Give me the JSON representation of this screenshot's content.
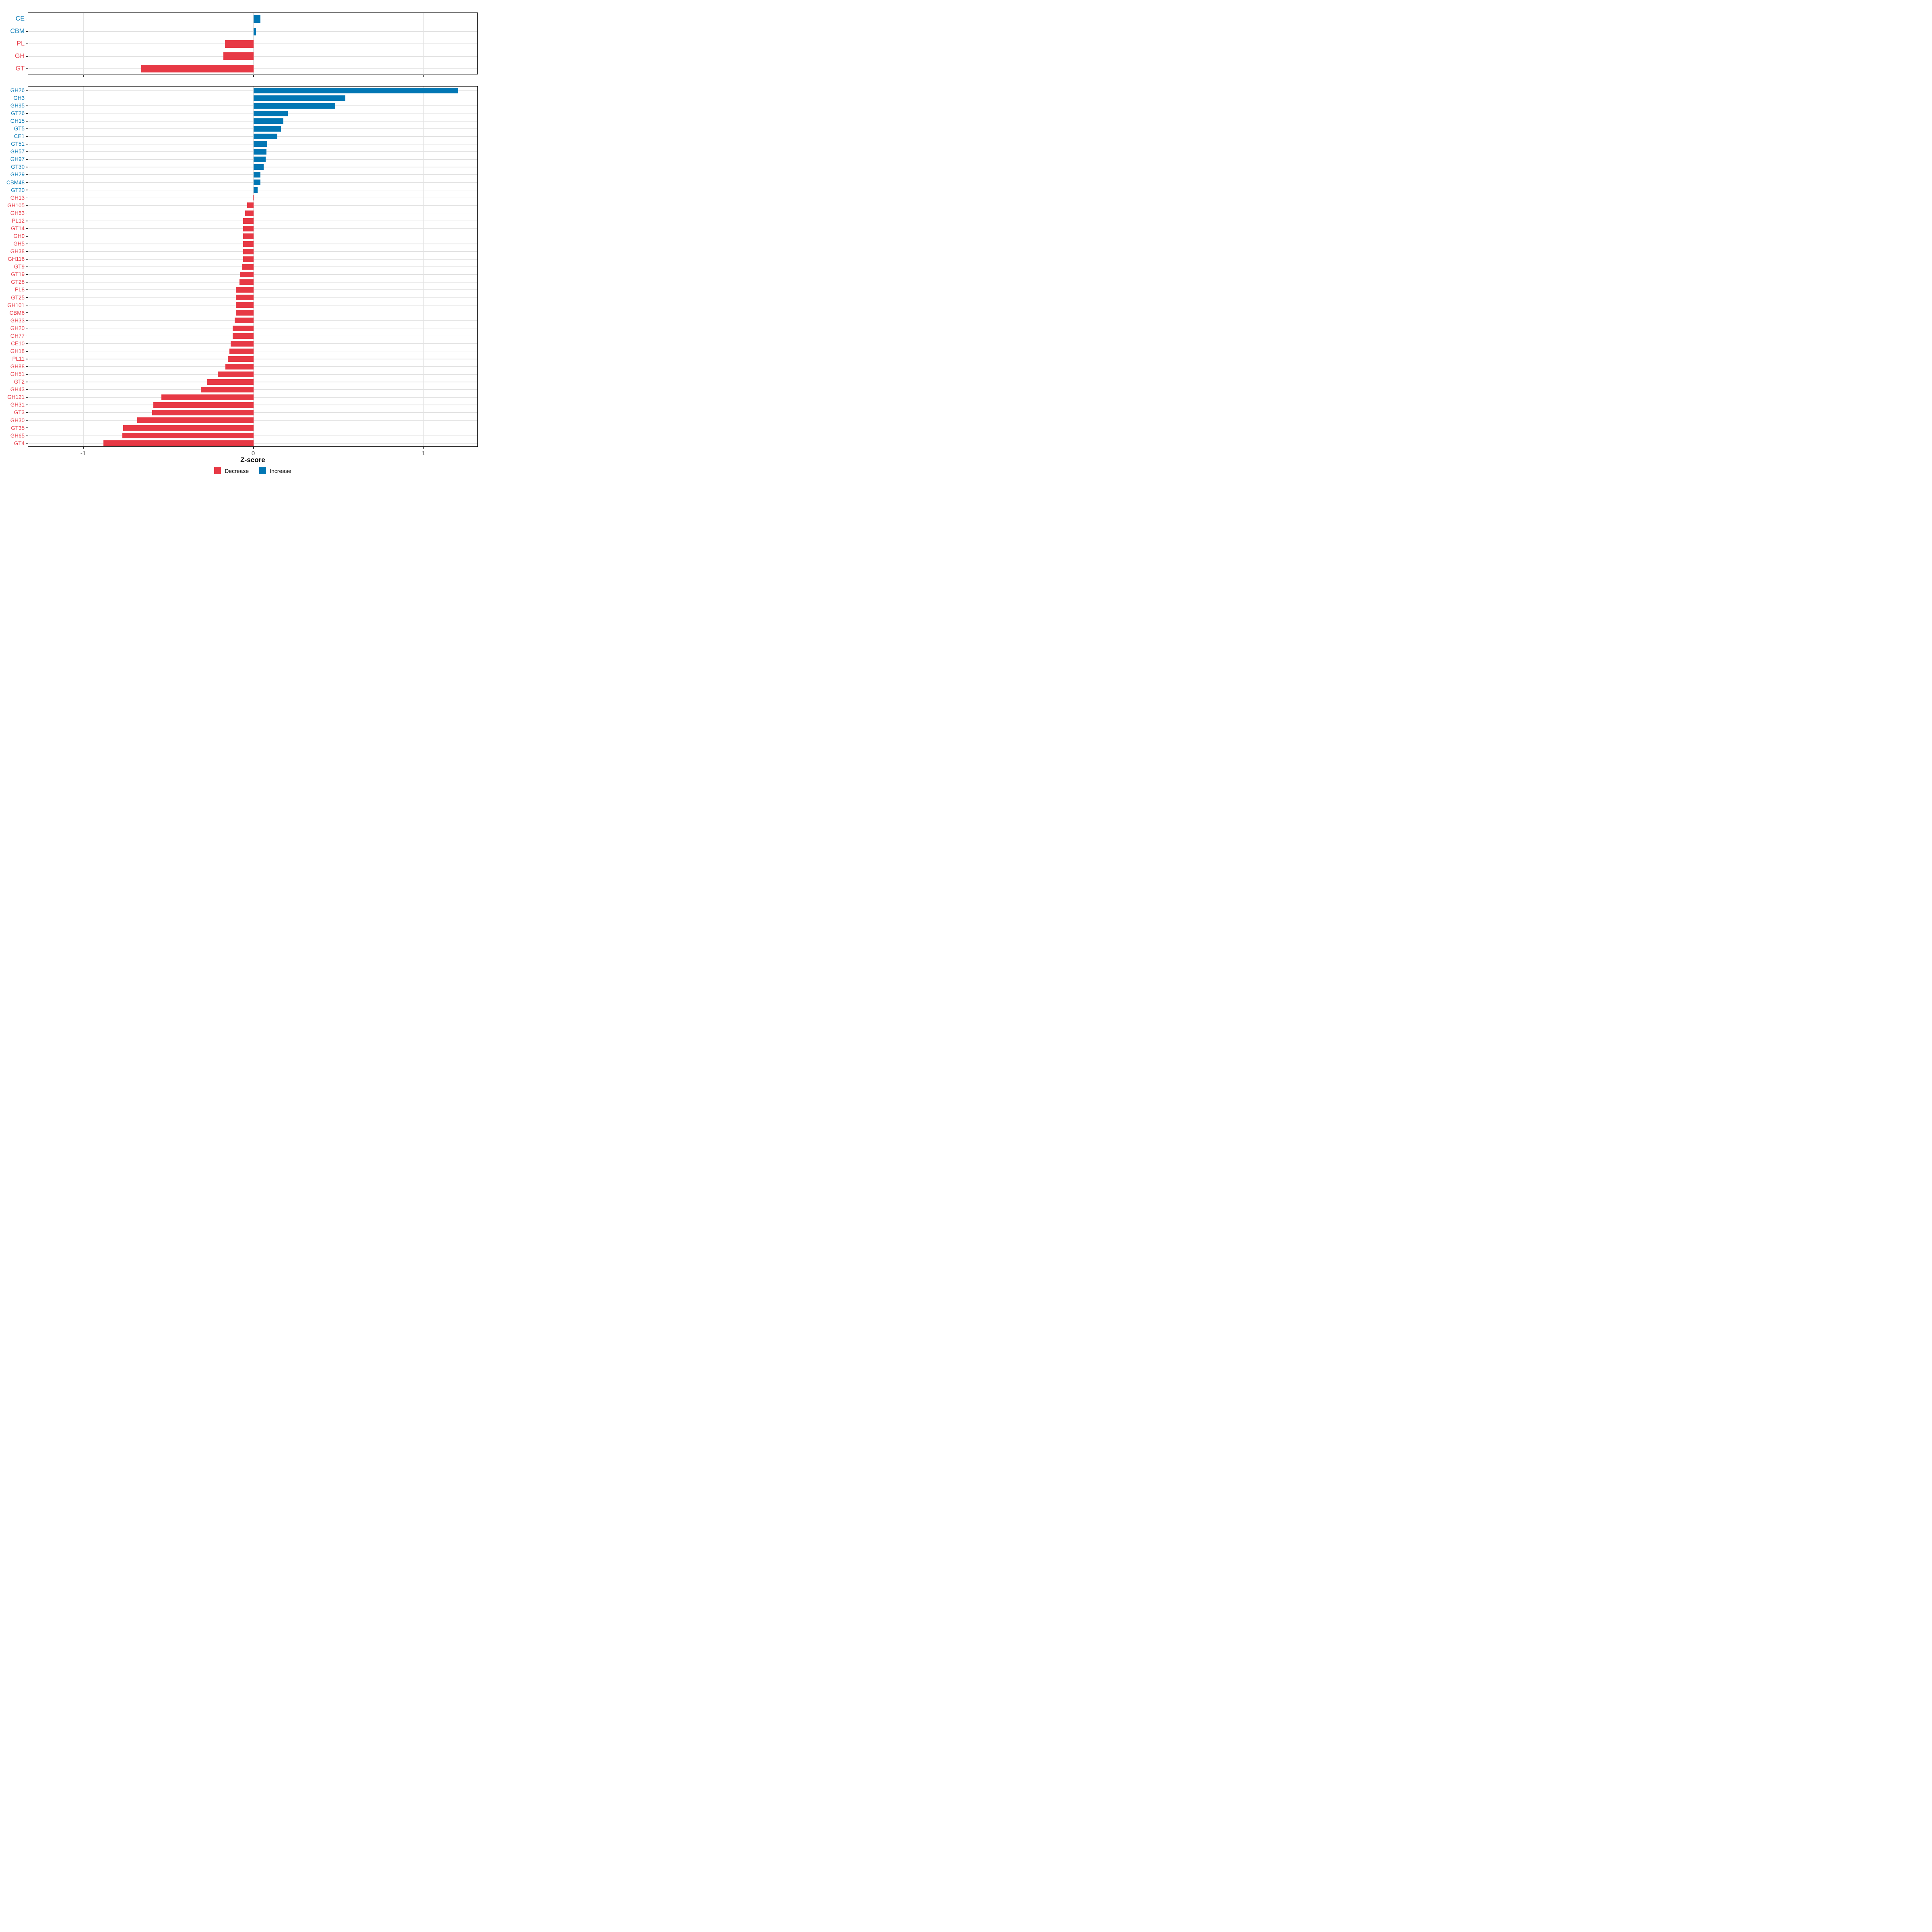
{
  "chart_data": [
    {
      "type": "bar",
      "orientation": "horizontal",
      "panel": "enzyme-classes",
      "categories": [
        "CE",
        "CBM",
        "PL",
        "GH",
        "GT"
      ],
      "values": [
        0.041,
        0.015,
        -0.169,
        -0.177,
        -0.66
      ],
      "xlabel": "",
      "ylabel": "",
      "xlim": [
        -1.326,
        1.322
      ],
      "xticks": [
        -1,
        0,
        1
      ],
      "xtick_labels_shown": false,
      "grid": true,
      "legend_position": "none"
    },
    {
      "type": "bar",
      "orientation": "horizontal",
      "panel": "enzyme-families",
      "categories": [
        "GH26",
        "GH3",
        "GH95",
        "GT26",
        "GH15",
        "GT5",
        "CE1",
        "GT51",
        "GH57",
        "GH97",
        "GT30",
        "GH29",
        "CBM48",
        "GT20",
        "GH13",
        "GH105",
        "GH63",
        "PL12",
        "GT14",
        "GH9",
        "GH5",
        "GH38",
        "GH116",
        "GT9",
        "GT19",
        "GT28",
        "PL8",
        "GT25",
        "GH101",
        "CBM6",
        "GH33",
        "GH20",
        "GH77",
        "CE10",
        "GH18",
        "PL11",
        "GH88",
        "GH51",
        "GT2",
        "GH43",
        "GH121",
        "GH31",
        "GT3",
        "GH30",
        "GT35",
        "GH65",
        "GT4"
      ],
      "values": [
        1.202,
        0.54,
        0.48,
        0.2,
        0.175,
        0.162,
        0.14,
        0.08,
        0.076,
        0.07,
        0.059,
        0.041,
        0.04,
        0.023,
        -0.004,
        -0.037,
        -0.05,
        -0.062,
        -0.062,
        -0.062,
        -0.062,
        -0.062,
        -0.062,
        -0.069,
        -0.078,
        -0.082,
        -0.105,
        -0.105,
        -0.105,
        -0.105,
        -0.111,
        -0.123,
        -0.124,
        -0.136,
        -0.141,
        -0.151,
        -0.166,
        -0.21,
        -0.273,
        -0.311,
        -0.543,
        -0.59,
        -0.597,
        -0.683,
        -0.768,
        -0.772,
        -0.884
      ],
      "xlabel": "Z-score",
      "ylabel": "",
      "xlim": [
        -1.326,
        1.322
      ],
      "xticks": [
        -1,
        0,
        1
      ],
      "xtick_labels": [
        "-1",
        "0",
        "1"
      ],
      "xtick_labels_shown": true,
      "grid": true,
      "legend_position": "bottom"
    }
  ],
  "legend": {
    "items": [
      {
        "label": "Decrease",
        "color": "#e73945"
      },
      {
        "label": "Increase",
        "color": "#0277b4"
      }
    ]
  },
  "colors": {
    "increase": "#0277b4",
    "decrease": "#e73945",
    "grid": "#e2e2e2",
    "axis_text": "#4d4d4d",
    "panel_border": "#1a1a1a"
  }
}
